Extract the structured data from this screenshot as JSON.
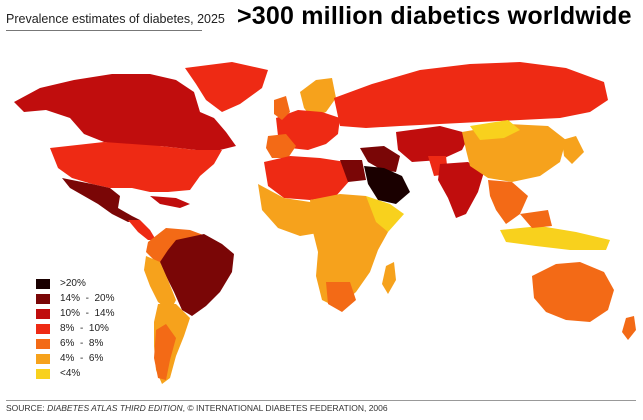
{
  "header": {
    "subtitle": "Prevalence estimates of diabetes, 2025",
    "title": ">300 million diabetics worldwide"
  },
  "colors": {
    "gt20": "#1a0000",
    "14_20": "#7a0606",
    "10_14": "#c00d0d",
    "8_10": "#ee2a14",
    "6_8": "#f36a16",
    "4_6": "#f6a21c",
    "lt4": "#f8d11d",
    "ocean": "#ffffff"
  },
  "legend": {
    "items": [
      {
        "label": ">20%",
        "color": "#1a0000"
      },
      {
        "label": "14%  -  20%",
        "color": "#7a0606"
      },
      {
        "label": "10%  -  14%",
        "color": "#c00d0d"
      },
      {
        "label": "8%  -  10%",
        "color": "#ee2a14"
      },
      {
        "label": "6%  -  8%",
        "color": "#f36a16"
      },
      {
        "label": "4%  -  6%",
        "color": "#f6a21c"
      },
      {
        "label": "<4%",
        "color": "#f8d11d"
      }
    ]
  },
  "source": {
    "prefix": "SOURCE: ",
    "italic": "DIABETES ATLAS THIRD EDITION",
    "suffix": ", © INTERNATIONAL DIABETES FEDERATION, 2006"
  }
}
